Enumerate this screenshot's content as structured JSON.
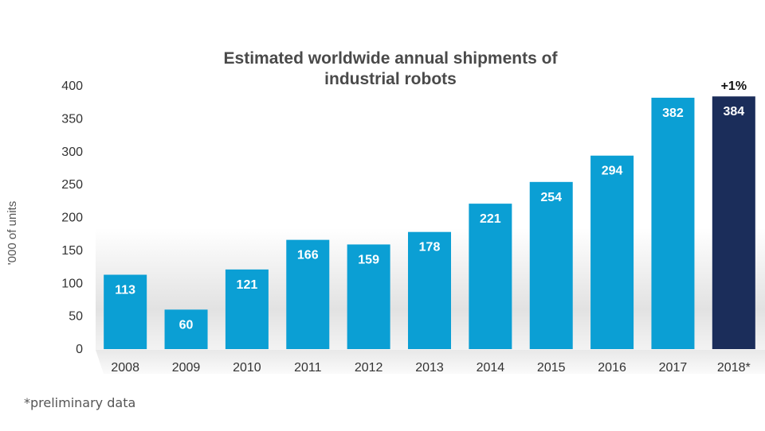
{
  "chart_data": {
    "type": "bar",
    "title_lines": [
      "Estimated worldwide annual shipments of",
      "industrial robots"
    ],
    "ylabel": "'000 of units",
    "xlabel": "",
    "categories": [
      "2008",
      "2009",
      "2010",
      "2011",
      "2012",
      "2013",
      "2014",
      "2015",
      "2016",
      "2017",
      "2018*"
    ],
    "values": [
      113,
      60,
      121,
      166,
      159,
      178,
      221,
      254,
      294,
      382,
      384
    ],
    "value_labels": [
      "113",
      "60",
      "121",
      "166",
      "159",
      "178",
      "221",
      "254",
      "294",
      "382",
      "384"
    ],
    "ylim": [
      0,
      400
    ],
    "yticks": [
      0,
      50,
      100,
      150,
      200,
      250,
      300,
      350,
      400
    ],
    "ytick_labels": [
      "0",
      "50",
      "100",
      "150",
      "200",
      "250",
      "300",
      "350",
      "400"
    ],
    "grid": false,
    "legend": "none",
    "highlight_index": 10,
    "annotation": {
      "category": "2018*",
      "text": "+1%"
    },
    "colors": {
      "bar": "#0b9fd4",
      "highlight": "#1b2d5a",
      "label": "#ffffff"
    }
  },
  "footnote": "*preliminary data"
}
